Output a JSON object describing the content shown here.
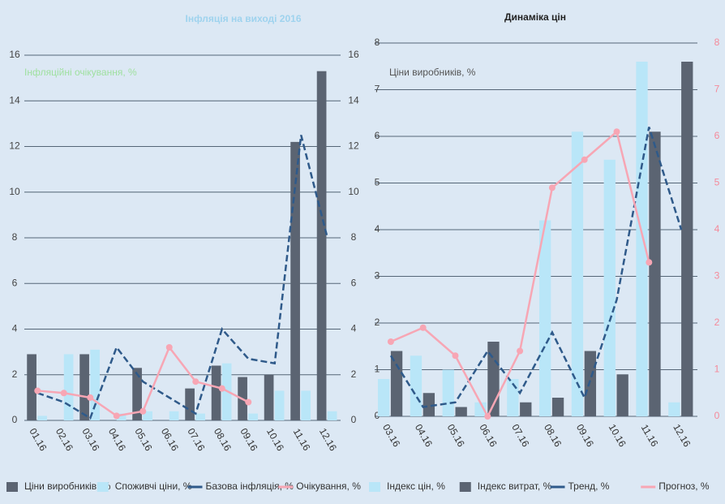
{
  "chart_data": [
    {
      "type": "combo",
      "title": "Інфляція на виході 2016",
      "subtitle": "Інфляційні очікування, %",
      "categories": [
        "01.16",
        "02.16",
        "03.16",
        "04.16",
        "05.16",
        "06.16",
        "07.16",
        "08.16",
        "09.16",
        "10.16",
        "11.16",
        "12.16"
      ],
      "ylim": [
        0,
        16
      ],
      "yticks": [
        0,
        2,
        4,
        6,
        8,
        10,
        12,
        14,
        16
      ],
      "y2lim": [
        0,
        16
      ],
      "y2ticks": [
        0,
        2,
        4,
        6,
        8,
        10,
        12,
        14,
        16
      ],
      "grid": true,
      "series": [
        {
          "name": "Ціни виробників, %",
          "kind": "bar",
          "color": "#5b6472",
          "values": [
            2.9,
            0,
            2.9,
            0,
            2.3,
            0,
            1.4,
            2.4,
            1.9,
            2.0,
            12.2,
            15.3
          ]
        },
        {
          "name": "Споживчі ціни, %",
          "kind": "bar",
          "color": "#b9e6f8",
          "values": [
            0.2,
            2.9,
            3.1,
            0.3,
            0.4,
            0.4,
            0.3,
            2.5,
            0.3,
            1.3,
            1.3,
            0.4
          ]
        },
        {
          "name": "Базова інфляція, %",
          "kind": "line",
          "color": "#2f5a8a",
          "values": [
            1.2,
            0.8,
            0.1,
            3.2,
            1.7,
            1.0,
            0.3,
            4.0,
            2.7,
            2.5,
            12.5,
            8.0
          ]
        },
        {
          "name": "Очікування, %",
          "kind": "line",
          "color": "#f7a6b4",
          "values": [
            1.3,
            1.2,
            1.0,
            0.2,
            0.4,
            3.2,
            1.7,
            1.4,
            0.8,
            null,
            null,
            null
          ]
        }
      ]
    },
    {
      "type": "combo",
      "title": "Динаміка цін",
      "subtitle": "Ціни виробників, %",
      "categories": [
        "03.16",
        "04.16",
        "05.16",
        "06.16",
        "07.16",
        "08.16",
        "09.16",
        "10.16",
        "11.16",
        "12.16"
      ],
      "ylim": [
        0,
        8
      ],
      "yticks": [
        0,
        1,
        2,
        3,
        4,
        5,
        6,
        7,
        8
      ],
      "y2lim": [
        0,
        8
      ],
      "y2ticks": [
        0,
        1,
        2,
        3,
        4,
        5,
        6,
        7,
        8
      ],
      "grid": true,
      "series": [
        {
          "name": "Індекс цін, %",
          "kind": "bar",
          "color": "#b9e6f8",
          "values": [
            0.8,
            1.3,
            1.0,
            0.3,
            0.8,
            4.2,
            6.1,
            5.5,
            7.6,
            0.3
          ]
        },
        {
          "name": "Індекс витрат, %",
          "kind": "bar",
          "color": "#5b6472",
          "values": [
            1.4,
            0.5,
            0.2,
            1.6,
            0.3,
            0.4,
            1.4,
            0.9,
            6.1,
            7.6
          ]
        },
        {
          "name": "Тренд, %",
          "kind": "line",
          "color": "#2f5a8a",
          "values": [
            1.3,
            0.2,
            0.3,
            1.4,
            0.5,
            1.8,
            0.4,
            2.5,
            6.2,
            4.0
          ]
        },
        {
          "name": "Прогноз, %",
          "kind": "line",
          "color": "#f7a6b4",
          "values": [
            1.6,
            1.9,
            1.3,
            0.0,
            1.4,
            4.9,
            5.5,
            6.1,
            3.3,
            null
          ]
        }
      ]
    }
  ]
}
